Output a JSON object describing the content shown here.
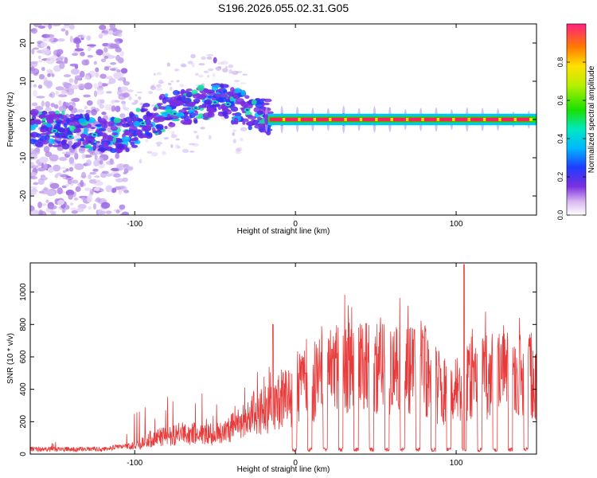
{
  "title": "S196.2026.055.02.31.G05",
  "chart_data": [
    {
      "type": "heatmap",
      "xlabel": "Height of straight line (km)",
      "ylabel": "Frequency (Hz)",
      "xlim": [
        -165,
        150
      ],
      "ylim": [
        -25,
        25
      ],
      "x_ticks": [
        -100,
        0,
        100
      ],
      "y_ticks": [
        -20,
        -10,
        0,
        10,
        20
      ],
      "colorbar": {
        "label": "Normalized spectral amplitude",
        "range": [
          0,
          1
        ],
        "ticks": [
          0.0,
          0.2,
          0.4,
          0.6,
          0.8
        ]
      },
      "ridge": [
        {
          "x": -165,
          "f": -2
        },
        {
          "x": -140,
          "f": -3
        },
        {
          "x": -120,
          "f": -4
        },
        {
          "x": -105,
          "f": -4
        },
        {
          "x": -95,
          "f": -1
        },
        {
          "x": -80,
          "f": 2
        },
        {
          "x": -60,
          "f": 4
        },
        {
          "x": -45,
          "f": 5
        },
        {
          "x": -35,
          "f": 3
        },
        {
          "x": -25,
          "f": 1.5
        },
        {
          "x": -15,
          "f": 0.5
        },
        {
          "x": 0,
          "f": 0
        },
        {
          "x": 150,
          "f": 0
        }
      ]
    },
    {
      "type": "line",
      "xlabel": "Height of straight line (km)",
      "ylabel": "SNR (10 * v/v)",
      "xlim": [
        -165,
        150
      ],
      "ylim": [
        0,
        1180
      ],
      "x_ticks": [
        -100,
        0,
        100
      ],
      "y_ticks": [
        0,
        200,
        400,
        600,
        800,
        1000
      ],
      "series": [
        {
          "name": "SNR",
          "color": "#e83a3a",
          "envelope": [
            {
              "x": -165,
              "y": 30
            },
            {
              "x": -120,
              "y": 30
            },
            {
              "x": -100,
              "y": 60
            },
            {
              "x": -90,
              "y": 120
            },
            {
              "x": -70,
              "y": 160
            },
            {
              "x": -50,
              "y": 150
            },
            {
              "x": -35,
              "y": 230
            },
            {
              "x": -25,
              "y": 330
            },
            {
              "x": -15,
              "y": 350
            },
            {
              "x": -10,
              "y": 400
            },
            {
              "x": 0,
              "y": 450
            },
            {
              "x": 10,
              "y": 550
            },
            {
              "x": 20,
              "y": 620
            },
            {
              "x": 30,
              "y": 660
            },
            {
              "x": 60,
              "y": 650
            },
            {
              "x": 80,
              "y": 640
            },
            {
              "x": 90,
              "y": 500
            },
            {
              "x": 97,
              "y": 330
            },
            {
              "x": 102,
              "y": 450
            },
            {
              "x": 110,
              "y": 600
            },
            {
              "x": 150,
              "y": 600
            }
          ],
          "peaks": [
            {
              "x": -14,
              "y": 800
            },
            {
              "x": 105,
              "y": 1170
            }
          ]
        }
      ]
    }
  ]
}
